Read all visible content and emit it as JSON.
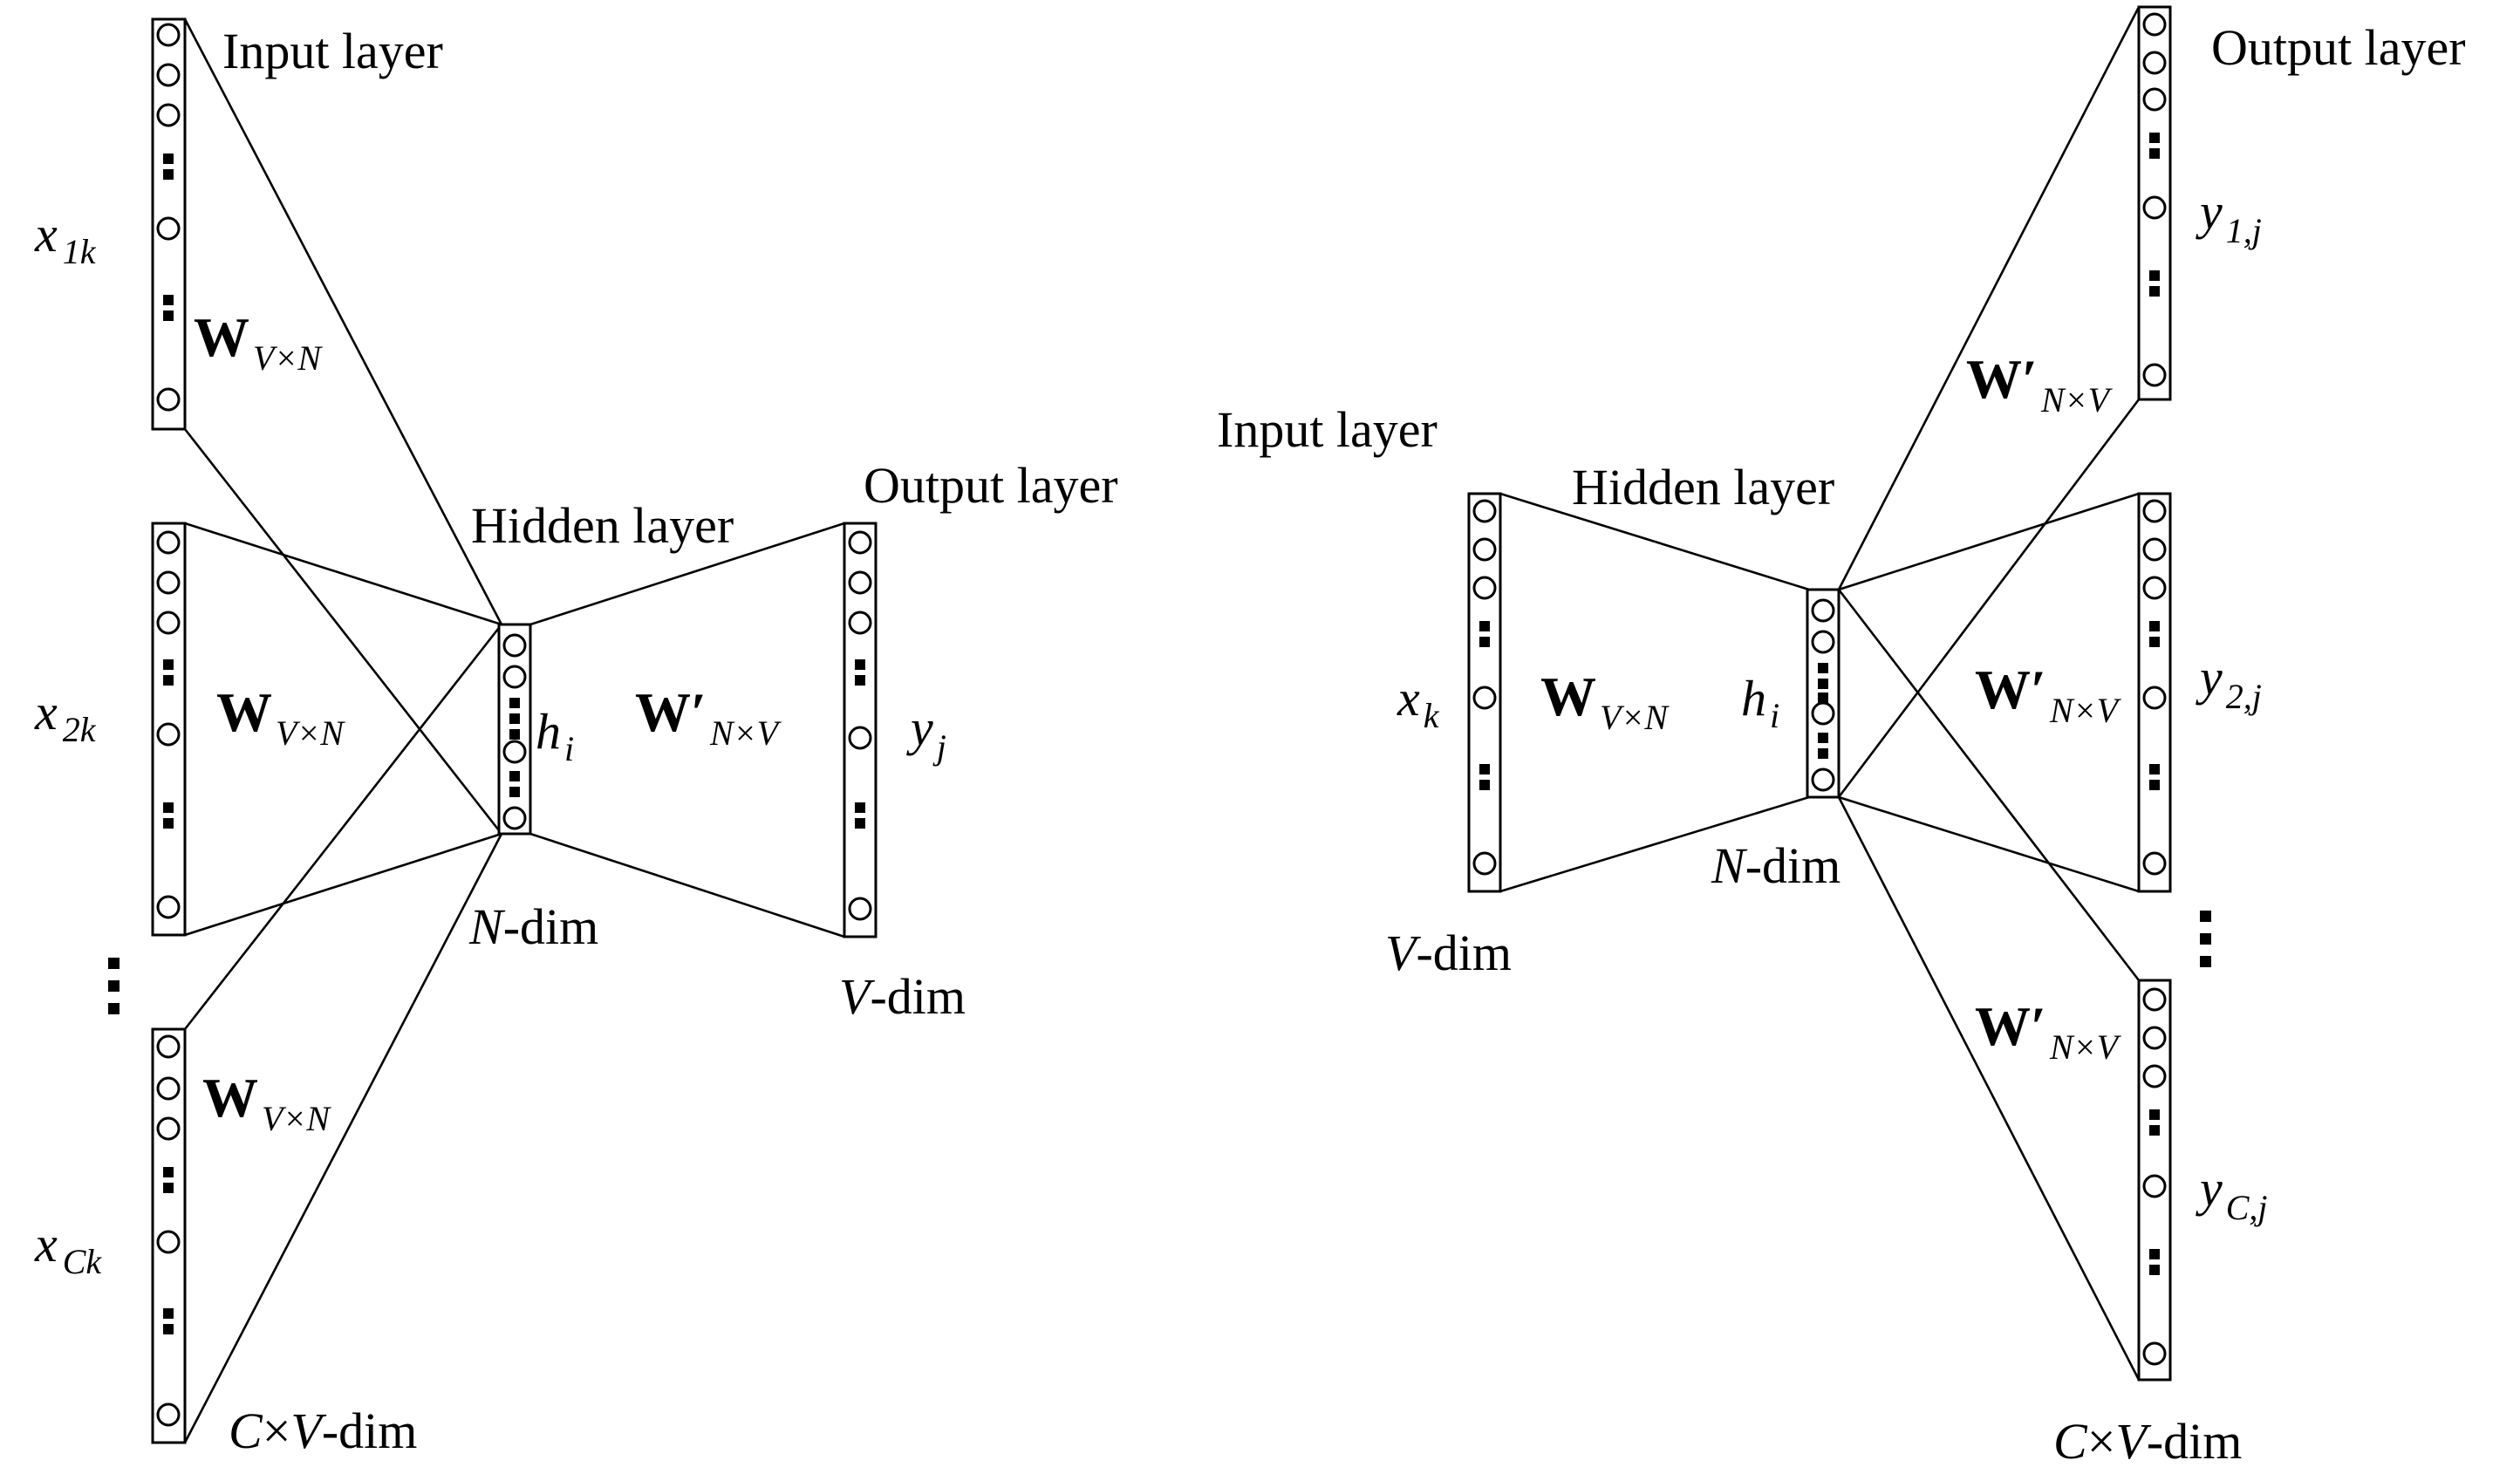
{
  "left_diagram": {
    "input_label": "Input layer",
    "hidden_label": "Hidden layer",
    "output_label": "Output layer",
    "inputs": [
      {
        "var": "x",
        "sub": "1k"
      },
      {
        "var": "x",
        "sub": "2k"
      },
      {
        "var": "x",
        "sub": "Ck"
      }
    ],
    "weight": {
      "main": "W",
      "sub": "V×N"
    },
    "weight_out": {
      "main": "W′",
      "sub": "N×V"
    },
    "hidden": {
      "var": "h",
      "sub": "i"
    },
    "output": {
      "var": "y",
      "sub": "j"
    },
    "input_dim": {
      "var": "C",
      "rest": "×",
      "var2": "V",
      "rest2": "-dim"
    },
    "hidden_dim": {
      "var": "N",
      "rest": "-dim"
    },
    "output_dim": {
      "var": "V",
      "rest": "-dim"
    }
  },
  "right_diagram": {
    "input_label": "Input layer",
    "hidden_label": "Hidden layer",
    "output_label": "Output layer",
    "input": {
      "var": "x",
      "sub": "k"
    },
    "weight": {
      "main": "W",
      "sub": "V×N"
    },
    "weight_out": {
      "main": "W′",
      "sub": "N×V"
    },
    "hidden": {
      "var": "h",
      "sub": "i"
    },
    "outputs": [
      {
        "var": "y",
        "sub": "1,j"
      },
      {
        "var": "y",
        "sub": "2,j"
      },
      {
        "var": "y",
        "sub": "C,j"
      }
    ],
    "input_dim": {
      "var": "V",
      "rest": "-dim"
    },
    "hidden_dim": {
      "var": "N",
      "rest": "-dim"
    },
    "output_dim": {
      "var": "C",
      "rest": "×",
      "var2": "V",
      "rest2": "-dim"
    }
  }
}
